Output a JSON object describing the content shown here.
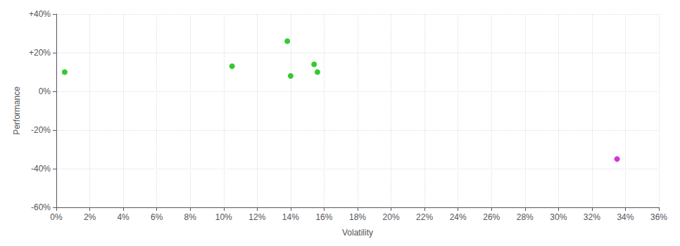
{
  "chart_data": {
    "type": "scatter",
    "xlabel": "Volatility",
    "ylabel": "Performance",
    "series": [
      {
        "color": "#00bb00",
        "x": [
          0.005,
          0.105,
          0.138,
          0.14,
          0.154,
          0.156
        ],
        "values": [
          0.1,
          0.13,
          0.26,
          0.08,
          0.14,
          0.1
        ]
      },
      {
        "color": "#cc00cc",
        "x": [
          0.335
        ],
        "values": [
          -0.35
        ]
      }
    ],
    "xlim": [
      0,
      0.36
    ],
    "ylim": [
      -0.6,
      0.4
    ],
    "xticks": [
      {
        "value": 0,
        "label": "0%"
      },
      {
        "value": 0.02,
        "label": "2%"
      },
      {
        "value": 0.04,
        "label": "4%"
      },
      {
        "value": 0.06,
        "label": "6%"
      },
      {
        "value": 0.08,
        "label": "8%"
      },
      {
        "value": 0.1,
        "label": "10%"
      },
      {
        "value": 0.12,
        "label": "12%"
      },
      {
        "value": 0.14,
        "label": "14%"
      },
      {
        "value": 0.16,
        "label": "16%"
      },
      {
        "value": 0.18,
        "label": "18%"
      },
      {
        "value": 0.2,
        "label": "20%"
      },
      {
        "value": 0.22,
        "label": "22%"
      },
      {
        "value": 0.24,
        "label": "24%"
      },
      {
        "value": 0.26,
        "label": "26%"
      },
      {
        "value": 0.28,
        "label": "28%"
      },
      {
        "value": 0.3,
        "label": "30%"
      },
      {
        "value": 0.32,
        "label": "32%"
      },
      {
        "value": 0.34,
        "label": "34%"
      },
      {
        "value": 0.36,
        "label": "36%"
      }
    ],
    "yticks": [
      {
        "value": -0.6,
        "label": "-60%"
      },
      {
        "value": -0.4,
        "label": "-40%"
      },
      {
        "value": -0.2,
        "label": "-20%"
      },
      {
        "value": 0,
        "label": "0%"
      },
      {
        "value": 0.2,
        "label": "+20%"
      },
      {
        "value": 0.4,
        "label": "+40%"
      }
    ],
    "grid": true
  }
}
